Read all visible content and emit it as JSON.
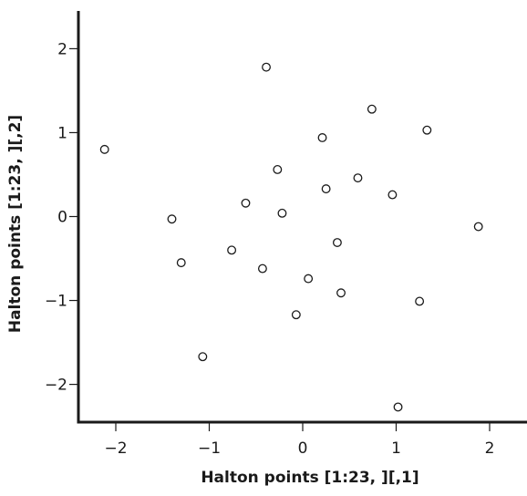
{
  "chart_data": {
    "type": "scatter",
    "title": "",
    "xlabel": "Halton points [1:23, ][,1]",
    "ylabel": "Halton points [1:23, ][,2]",
    "xlim": [
      -2.4,
      2.4
    ],
    "ylim": [
      -2.45,
      2.45
    ],
    "x_ticks": [
      -2,
      -1,
      0,
      1,
      2
    ],
    "y_ticks": [
      -2,
      -1,
      0,
      1,
      2
    ],
    "x_tick_labels": [
      "−2",
      "−1",
      "0",
      "1",
      "2"
    ],
    "y_tick_labels": [
      "−2",
      "−1",
      "0",
      "1",
      "2"
    ],
    "grid": false,
    "marker": "open-circle",
    "point_color": "#1a1a1a",
    "points": [
      {
        "x": -2.12,
        "y": 0.8
      },
      {
        "x": -1.4,
        "y": -0.03
      },
      {
        "x": -1.3,
        "y": -0.55
      },
      {
        "x": -1.07,
        "y": -1.67
      },
      {
        "x": -0.76,
        "y": -0.4
      },
      {
        "x": -0.61,
        "y": 0.16
      },
      {
        "x": -0.43,
        "y": -0.62
      },
      {
        "x": -0.39,
        "y": 1.78
      },
      {
        "x": -0.27,
        "y": 0.56
      },
      {
        "x": -0.22,
        "y": 0.04
      },
      {
        "x": -0.07,
        "y": -1.17
      },
      {
        "x": 0.06,
        "y": -0.74
      },
      {
        "x": 0.21,
        "y": 0.94
      },
      {
        "x": 0.25,
        "y": 0.33
      },
      {
        "x": 0.37,
        "y": -0.31
      },
      {
        "x": 0.41,
        "y": -0.91
      },
      {
        "x": 0.59,
        "y": 0.46
      },
      {
        "x": 0.74,
        "y": 1.28
      },
      {
        "x": 0.96,
        "y": 0.26
      },
      {
        "x": 1.02,
        "y": -2.27
      },
      {
        "x": 1.25,
        "y": -1.01
      },
      {
        "x": 1.33,
        "y": 1.03
      },
      {
        "x": 1.88,
        "y": -0.12
      }
    ]
  }
}
